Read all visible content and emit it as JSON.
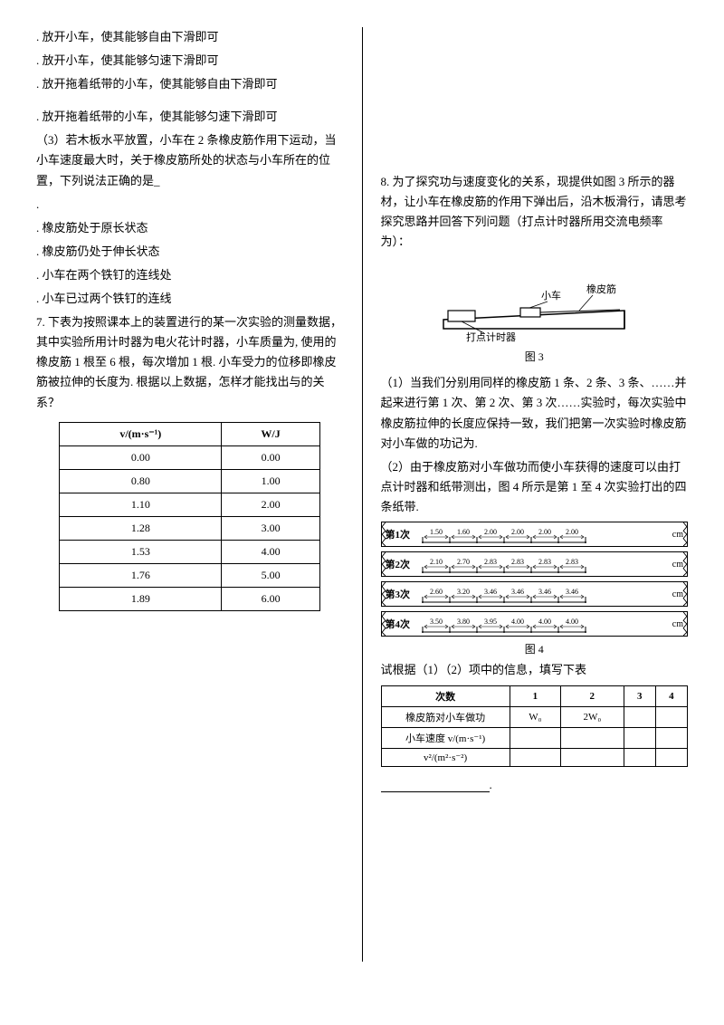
{
  "left": {
    "options_a": ". 放开小车，使其能够自由下滑即可",
    "options_b": ". 放开小车，使其能够匀速下滑即可",
    "options_c": ". 放开拖着纸带的小车，使其能够自由下滑即可",
    "options_d": ". 放开拖着纸带的小车，使其能够匀速下滑即可",
    "q3_text": "（3）若木板水平放置，小车在 2 条橡皮筋作用下运动，当小车速度最大时，关于橡皮筋所处的状态与小车所在的位置，下列说法正确的是_",
    "q3_blank": ".",
    "q3_a": ". 橡皮筋处于原长状态",
    "q3_b": ". 橡皮筋仍处于伸长状态",
    "q3_c": ". 小车在两个铁钉的连线处",
    "q3_d": ". 小车已过两个铁钉的连线",
    "q7_stem": "7. 下表为按照课本上的装置进行的某一次实验的测量数据，其中实验所用计时器为电火花计时器，小车质量为, 使用的橡皮筋 1 根至 6 根，每次增加 1 根. 小车受力的位移即橡皮筋被拉伸的长度为. 根据以上数据，怎样才能找出与的关系？",
    "table7": {
      "head_v": "v/(m·s⁻¹)",
      "head_w": "W/J",
      "rows": [
        [
          "0.00",
          "0.00"
        ],
        [
          "0.80",
          "1.00"
        ],
        [
          "1.10",
          "2.00"
        ],
        [
          "1.28",
          "3.00"
        ],
        [
          "1.53",
          "4.00"
        ],
        [
          "1.76",
          "5.00"
        ],
        [
          "1.89",
          "6.00"
        ]
      ]
    }
  },
  "right": {
    "q8_stem": "8. 为了探究功与速度变化的关系，现提供如图 3 所示的器材，让小车在橡皮筋的作用下弹出后，沿木板滑行，请思考探究思路并回答下列问题（打点计时器所用交流电频率为）：",
    "fig3_labels": {
      "car": "小车",
      "band": "橡皮筋",
      "timer": "打点计时器"
    },
    "fig3_caption": "图 3",
    "q8_1": "（1）当我们分别用同样的橡皮筋 1 条、2 条、3 条、……并起来进行第 1 次、第 2 次、第 3 次……实验时，每次实验中橡皮筋拉伸的长度应保持一致，我们把第一次实验时橡皮筋对小车做的功记为.",
    "q8_2": "（2）由于橡皮筋对小车做功而使小车获得的速度可以由打点计时器和纸带测出，图 4 所示是第 1 至 4 次实验打出的四条纸带.",
    "tapes": [
      {
        "label": "第1次",
        "vals": "1.50 1.60 2.00 2.00 2.00 2.00",
        "unit": "cm"
      },
      {
        "label": "第2次",
        "vals": "2.10 2.70 2.83 2.83 2.83 2.83",
        "unit": "cm"
      },
      {
        "label": "第3次",
        "vals": "2.60 3.20 3.46 3.46 3.46 3.46",
        "unit": "cm"
      },
      {
        "label": "第4次",
        "vals": "3.50 3.80 3.95 4.00 4.00 4.00",
        "unit": "cm"
      }
    ],
    "fig4_caption": "图 4",
    "q8_fill": "试根据（1）（2）项中的信息，填写下表",
    "fill_table": {
      "header": [
        "次数",
        "1",
        "2",
        "3",
        "4"
      ],
      "row1_label": "橡皮筋对小车做功",
      "row1_vals": [
        "W₀",
        "2W₀",
        "",
        ""
      ],
      "row2_label": "小车速度 v/(m·s⁻¹)",
      "row3_label": "v²/(m²·s⁻²)"
    },
    "trailing": "."
  }
}
